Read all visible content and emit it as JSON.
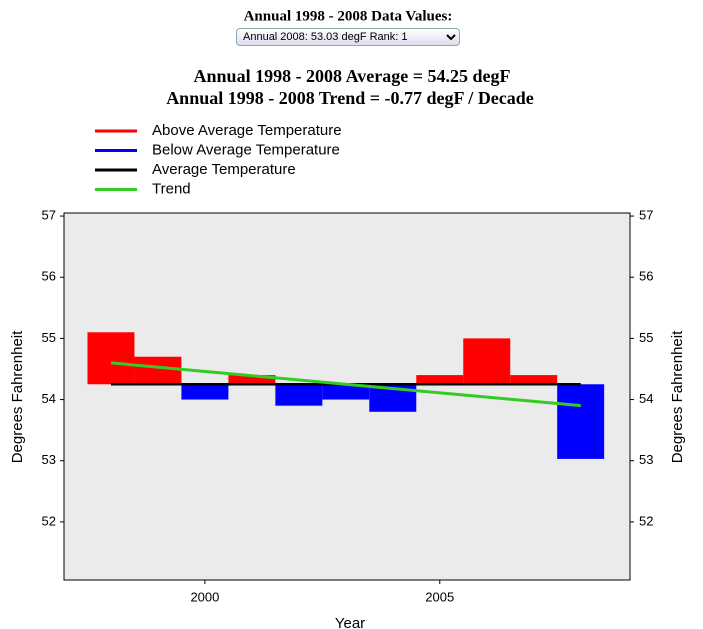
{
  "dropdown": {
    "label": "Annual 1998 - 2008 Data Values:",
    "selected": "Annual 2008: 53.03 degF  Rank: 1"
  },
  "chart_data": {
    "type": "bar",
    "title": "Annual 1998 - 2008 Average = 54.25 degF",
    "subtitle": "Annual 1998 - 2008 Trend = -0.77 degF / Decade",
    "legend": [
      {
        "name": "Above Average Temperature",
        "color": "#ff0000"
      },
      {
        "name": "Below Average Temperature",
        "color": "#0000ff"
      },
      {
        "name": "Average Temperature",
        "color": "#000000"
      },
      {
        "name": "Trend",
        "color": "#33cc22"
      }
    ],
    "x": [
      1998,
      1999,
      2000,
      2001,
      2002,
      2003,
      2004,
      2005,
      2006,
      2007,
      2008
    ],
    "values": [
      55.1,
      54.7,
      54.0,
      54.4,
      53.9,
      54.0,
      53.8,
      54.4,
      55.0,
      54.4,
      53.03
    ],
    "average": 54.25,
    "trend": {
      "x": [
        1998,
        2008
      ],
      "values": [
        54.6,
        53.9
      ]
    },
    "xlim": [
      1997,
      2009.05
    ],
    "xticks": [
      2000,
      2005
    ],
    "xlabel": "Year",
    "ylim": [
      51.05,
      57.05
    ],
    "yticks": [
      52,
      53,
      54,
      55,
      56,
      57
    ],
    "ylabel": "Degrees Fahrenheit",
    "background": "#ebebeb"
  }
}
